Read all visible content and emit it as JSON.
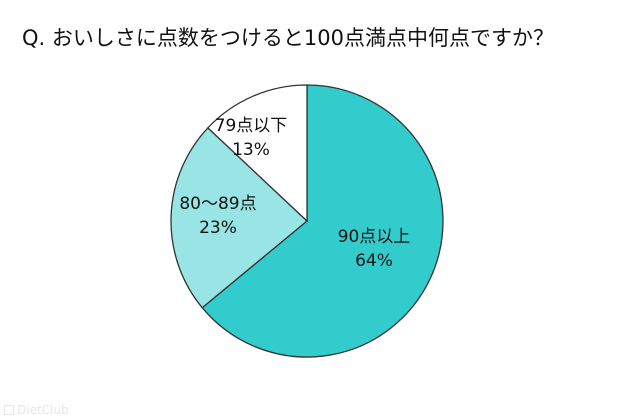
{
  "title": "Q. おいしさに点数をつけると100点満点中何点ですか？",
  "chart_data": {
    "type": "pie",
    "title": "Q. おいしさに点数をつけると100点満点中何点ですか？",
    "start": "12 o'clock",
    "direction": "clockwise",
    "slices": [
      {
        "label": "90点以上",
        "value": 64,
        "value_label": "64%",
        "color": "#33cccc"
      },
      {
        "label": "80〜89点",
        "value": 23,
        "value_label": "23%",
        "color": "#99e5e5"
      },
      {
        "label": "79点以下",
        "value": 13,
        "value_label": "13%",
        "color": "#ffffff"
      }
    ],
    "edge_color": "#333333",
    "legend": "none"
  },
  "watermark": "DietClub"
}
